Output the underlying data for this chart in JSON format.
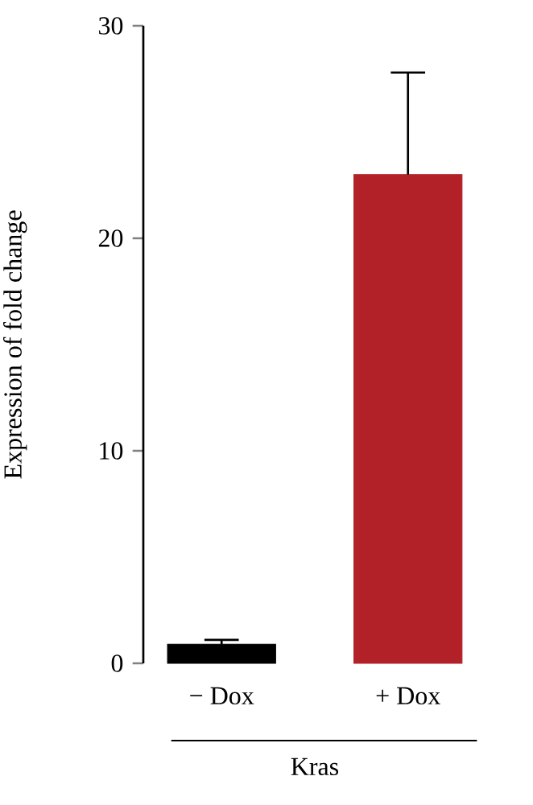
{
  "chart_data": {
    "type": "bar",
    "ylabel": "Expression of fold change",
    "categories": [
      "− Dox",
      "+ Dox"
    ],
    "values": [
      0.9,
      23.0
    ],
    "colors": [
      "#000000",
      "#b22128"
    ],
    "errors": [
      [
        0.9,
        1.1
      ],
      [
        23.0,
        27.8
      ]
    ],
    "ylim": [
      0,
      30
    ],
    "yticks": [
      0,
      10,
      20,
      30
    ],
    "annotations": [
      "Kras"
    ]
  }
}
